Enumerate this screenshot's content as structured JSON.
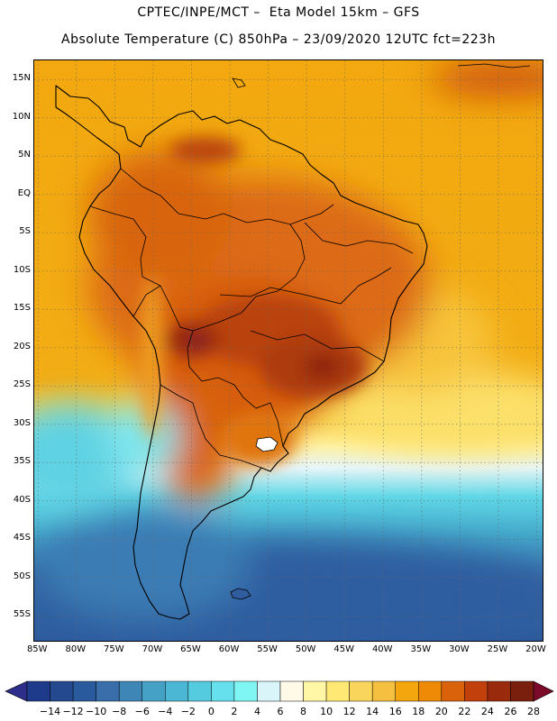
{
  "header": {
    "title_line1": "CPTEC/INPE/MCT –  Eta Model 15km – GFS",
    "title_line2": "Absolute Temperature (C) 850hPa – 23/09/2020 12UTC fct=223h"
  },
  "map": {
    "lat_ticks": [
      "15N",
      "10N",
      "5N",
      "EQ",
      "5S",
      "10S",
      "15S",
      "20S",
      "25S",
      "30S",
      "35S",
      "40S",
      "45S",
      "50S",
      "55S"
    ],
    "lon_ticks": [
      "85W",
      "80W",
      "75W",
      "70W",
      "65W",
      "60W",
      "55W",
      "50W",
      "45W",
      "40W",
      "35W",
      "30W",
      "25W",
      "20W"
    ],
    "lat_range": [
      17.5,
      -58.5
    ],
    "lon_range": [
      -85.5,
      -19
    ],
    "grid": "dotted"
  },
  "colorbar": {
    "labels": [
      "-14",
      "-12",
      "-10",
      "-8",
      "-6",
      "-4",
      "-2",
      "0",
      "2",
      "4",
      "6",
      "8",
      "10",
      "12",
      "14",
      "16",
      "18",
      "20",
      "22",
      "24",
      "26",
      "28"
    ],
    "colors": [
      "#1e3a8a",
      "#24498f",
      "#2a5a9e",
      "#3a6eaa",
      "#3d86b6",
      "#45a2c6",
      "#4bb7d4",
      "#55cbe0",
      "#66e0ec",
      "#80f6f4",
      "#d9f5fa",
      "#fff9e8",
      "#fff6a6",
      "#ffe974",
      "#fad55c",
      "#f5c040",
      "#f3a60e",
      "#ef8a06",
      "#d9620a",
      "#c2400b",
      "#9a2a0c",
      "#7a1e0e"
    ],
    "under_color": "#2d2d8a",
    "over_color": "#7a0a28"
  }
}
